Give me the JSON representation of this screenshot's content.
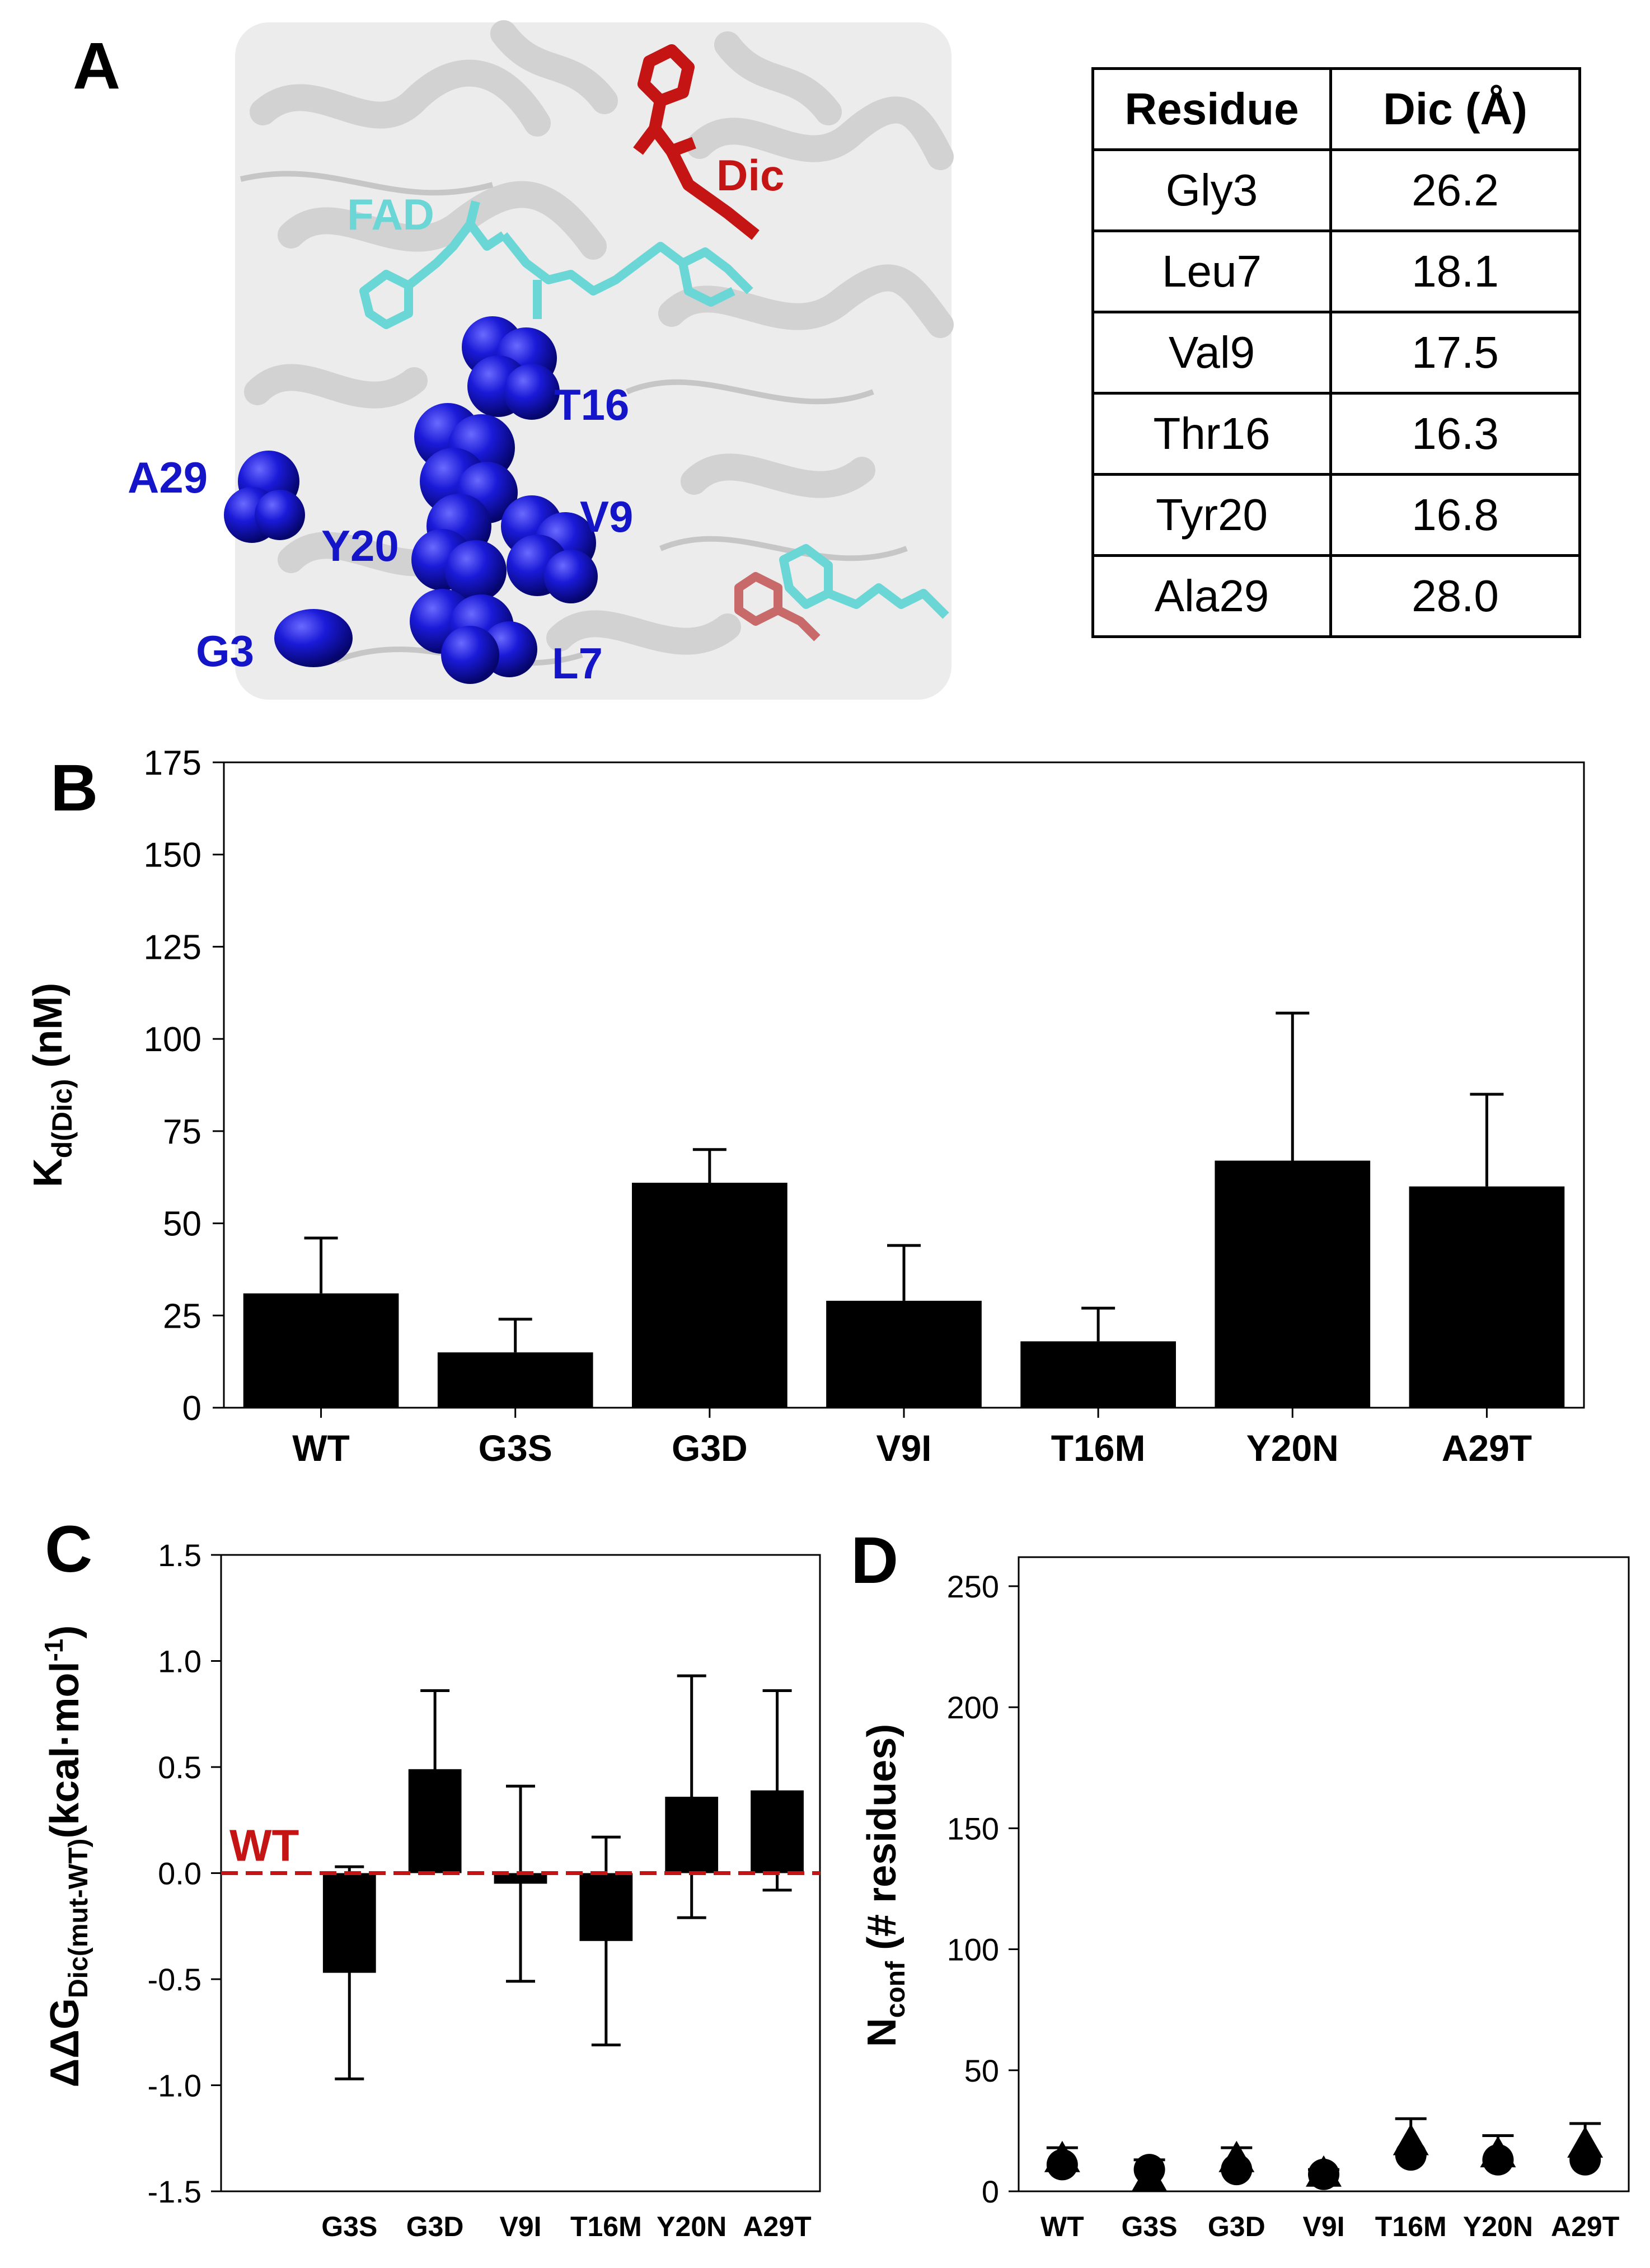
{
  "panels": {
    "a": {
      "letter": "A",
      "structure_labels": [
        "Dic",
        "FAD",
        "T16",
        "A29",
        "Y20",
        "V9",
        "G3",
        "L7"
      ],
      "colors": {
        "dic": "#c41414",
        "fad": "#6ad6d6",
        "residues": "#1414c8",
        "protein": "#dcdcdc"
      },
      "table": {
        "headers": [
          "Residue",
          "Dic (Å)"
        ],
        "rows": [
          [
            "Gly3",
            "26.2"
          ],
          [
            "Leu7",
            "18.1"
          ],
          [
            "Val9",
            "17.5"
          ],
          [
            "Thr16",
            "16.3"
          ],
          [
            "Tyr20",
            "16.8"
          ],
          [
            "Ala29",
            "28.0"
          ]
        ]
      }
    },
    "b": {
      "letter": "B"
    },
    "c": {
      "letter": "C"
    },
    "d": {
      "letter": "D"
    }
  },
  "chart_data": [
    {
      "panel": "B",
      "type": "bar",
      "categories": [
        "WT",
        "G3S",
        "G3D",
        "V9I",
        "T16M",
        "Y20N",
        "A29T"
      ],
      "values": [
        31,
        15,
        61,
        29,
        18,
        67,
        60
      ],
      "error_plus": [
        15,
        9,
        9,
        15,
        9,
        40,
        25
      ],
      "ylabel_main": "K",
      "ylabel_sub": "d(Dic)",
      "ylabel_unit": " (nM)",
      "ylim": [
        0,
        175
      ],
      "yticks": [
        0,
        25,
        50,
        75,
        100,
        125,
        150,
        175
      ],
      "grid": false,
      "bar_color": "#000000"
    },
    {
      "panel": "C",
      "type": "bar",
      "categories": [
        "G3S",
        "G3D",
        "V9I",
        "T16M",
        "Y20N",
        "A29T"
      ],
      "values": [
        -0.47,
        0.49,
        -0.05,
        -0.32,
        0.36,
        0.39
      ],
      "error": [
        0.5,
        0.37,
        0.46,
        0.49,
        0.57,
        0.47
      ],
      "ylabel_main": "ΔΔG",
      "ylabel_sub": "Dic(mut-WT)",
      "ylabel_unit": "(kcal·mol",
      "ylabel_sup": "-1",
      "ylabel_close": ")",
      "ylim": [
        -1.5,
        1.5
      ],
      "yticks": [
        "1.5",
        "1.0",
        "0.5",
        "0.0",
        "-0.5",
        "-1.0",
        "-1.5"
      ],
      "reference_line": {
        "label": "WT",
        "value": 0.0,
        "color": "#c41414"
      },
      "grid": false,
      "bar_color": "#000000"
    },
    {
      "panel": "D",
      "type": "scatter",
      "categories": [
        "WT",
        "G3S",
        "G3D",
        "V9I",
        "T16M",
        "Y20N",
        "A29T"
      ],
      "circle_values": [
        11,
        9,
        9,
        7,
        15,
        13,
        13
      ],
      "triangle_values": [
        13,
        5,
        13,
        7,
        20,
        15,
        19
      ],
      "error_plus": [
        5,
        4,
        5,
        2,
        10,
        8,
        9
      ],
      "ylabel_main": "N",
      "ylabel_sub": "conf",
      "ylabel_unit": " (# residues)",
      "ylim": [
        0,
        262
      ],
      "yticks": [
        0,
        50,
        100,
        150,
        200,
        250
      ],
      "grid": false,
      "marker_color": "#000000"
    }
  ]
}
